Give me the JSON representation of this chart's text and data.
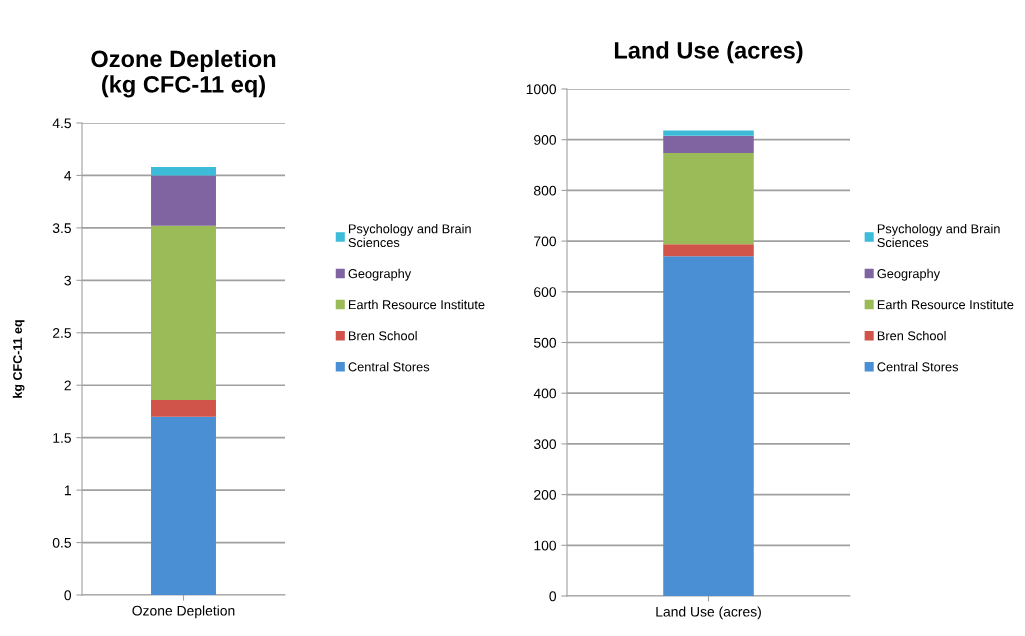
{
  "chart_data": [
    {
      "type": "bar",
      "stacked": true,
      "title": "Ozone Depletion\n(kg CFC-11 eq)",
      "ylabel": "kg CFC-11 eq",
      "categories": [
        "Ozone Depletion"
      ],
      "ylim": [
        0,
        4.5
      ],
      "yticks": [
        0,
        0.5,
        1,
        1.5,
        2,
        2.5,
        3,
        3.5,
        4,
        4.5
      ],
      "grid": "y",
      "legend": "right",
      "series": [
        {
          "name": "Central Stores",
          "color": "#4a8fd4",
          "values": [
            1.7
          ]
        },
        {
          "name": "Bren School",
          "color": "#d0544a",
          "values": [
            0.16
          ]
        },
        {
          "name": "Earth Resource Institute",
          "color": "#9bbb59",
          "values": [
            1.66
          ]
        },
        {
          "name": "Geography",
          "color": "#8064a2",
          "values": [
            0.48
          ]
        },
        {
          "name": "Psychology and Brain\nSciences",
          "color": "#3cbcd8",
          "values": [
            0.08
          ]
        }
      ]
    },
    {
      "type": "bar",
      "stacked": true,
      "title": "Land Use (acres)",
      "categories": [
        "Land Use (acres)"
      ],
      "ylim": [
        0,
        1000
      ],
      "yticks": [
        0,
        100,
        200,
        300,
        400,
        500,
        600,
        700,
        800,
        900,
        1000
      ],
      "grid": "y",
      "legend": "right",
      "series": [
        {
          "name": "Central Stores",
          "color": "#4a8fd4",
          "values": [
            670
          ]
        },
        {
          "name": "Bren School",
          "color": "#d0544a",
          "values": [
            24
          ]
        },
        {
          "name": "Earth Resource Institute",
          "color": "#9bbb59",
          "values": [
            180
          ]
        },
        {
          "name": "Geography",
          "color": "#8064a2",
          "values": [
            34
          ]
        },
        {
          "name": "Psychology and Brain\nSciences",
          "color": "#3cbcd8",
          "values": [
            10
          ]
        }
      ]
    }
  ]
}
